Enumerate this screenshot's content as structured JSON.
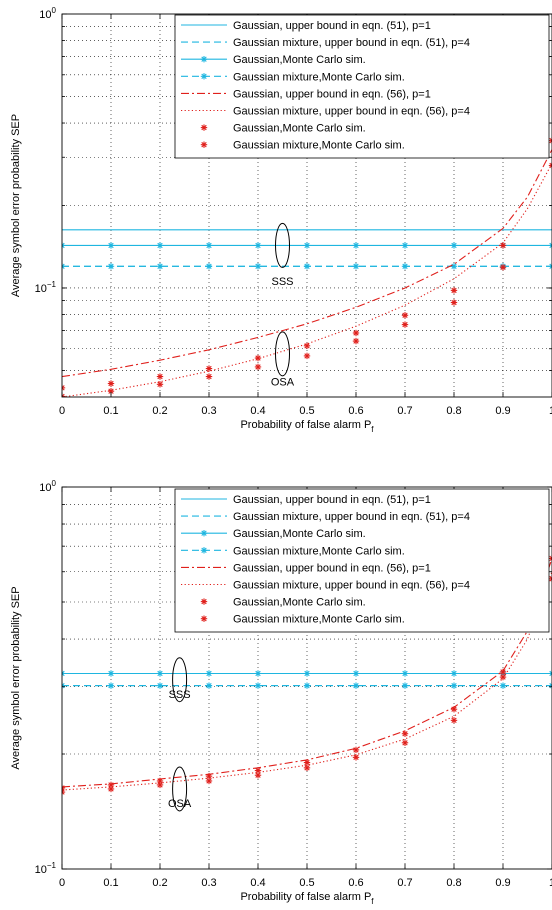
{
  "colors": {
    "cyan": "#1fb6e0",
    "red": "#e0201c",
    "axis": "#000000",
    "grid": "#000000"
  },
  "chart_data": [
    {
      "type": "line",
      "xscale": "linear",
      "yscale": "log",
      "xlim": [
        0,
        1
      ],
      "ylim": [
        0.04,
        1
      ],
      "xticks": [
        "0",
        "0.1",
        "0.2",
        "0.3",
        "0.4",
        "0.5",
        "0.6",
        "0.7",
        "0.8",
        "0.9",
        "1"
      ],
      "ytick_major": [
        {
          "base": "10",
          "exp": "−1",
          "value": 0.1
        },
        {
          "base": "10",
          "exp": "0",
          "value": 1
        }
      ],
      "grid": true,
      "legend_position": "top-right",
      "xlabel": {
        "text": "Probability of false alarm P",
        "sub": "f"
      },
      "ylabel": "Average symbol error probability SEP",
      "annotations": [
        {
          "text": "SSS",
          "x": 0.45,
          "y": 0.106,
          "ellipse_y": 0.143
        },
        {
          "text": "OSA",
          "x": 0.45,
          "y": 0.0455,
          "ellipse_y": 0.0575
        }
      ],
      "series": [
        {
          "name": "Gaussian, upper bound in eqn. (51), p=1",
          "color": "cyan",
          "dash": "solid",
          "marker": "none",
          "x": [
            0,
            1
          ],
          "y": [
            0.163,
            0.163
          ]
        },
        {
          "name": "Gaussian mixture, upper bound in eqn. (51), p=4",
          "color": "cyan",
          "dash": "dashed",
          "marker": "none",
          "x": [
            0,
            1
          ],
          "y": [
            0.12,
            0.12
          ]
        },
        {
          "name": "Gaussian,Monte Carlo sim.",
          "color": "cyan",
          "dash": "solid",
          "marker": "star",
          "x": [
            0,
            0.1,
            0.2,
            0.3,
            0.4,
            0.5,
            0.6,
            0.7,
            0.8,
            0.9,
            1
          ],
          "y": [
            0.143,
            0.143,
            0.143,
            0.143,
            0.143,
            0.143,
            0.143,
            0.143,
            0.143,
            0.143,
            0.143
          ]
        },
        {
          "name": "Gaussian mixture,Monte Carlo sim.",
          "color": "cyan",
          "dash": "dashed",
          "marker": "star",
          "x": [
            0,
            0.1,
            0.2,
            0.3,
            0.4,
            0.5,
            0.6,
            0.7,
            0.8,
            0.9,
            1
          ],
          "y": [
            0.12,
            0.12,
            0.12,
            0.12,
            0.12,
            0.12,
            0.12,
            0.12,
            0.12,
            0.12,
            0.12
          ]
        },
        {
          "name": "Gaussian, upper bound in eqn. (56), p=1",
          "color": "red",
          "dash": "dashdot",
          "marker": "none",
          "x": [
            0,
            0.1,
            0.2,
            0.3,
            0.4,
            0.5,
            0.6,
            0.7,
            0.8,
            0.9,
            0.95,
            1
          ],
          "y": [
            0.0475,
            0.0505,
            0.0545,
            0.0595,
            0.066,
            0.074,
            0.085,
            0.1,
            0.122,
            0.165,
            0.215,
            0.32
          ]
        },
        {
          "name": "Gaussian mixture, upper bound in eqn. (56), p=4",
          "color": "red",
          "dash": "dotted",
          "marker": "none",
          "x": [
            0,
            0.1,
            0.2,
            0.3,
            0.4,
            0.5,
            0.6,
            0.7,
            0.8,
            0.9,
            0.95,
            1
          ],
          "y": [
            0.04,
            0.0423,
            0.0455,
            0.0497,
            0.0552,
            0.0625,
            0.0725,
            0.0865,
            0.108,
            0.146,
            0.195,
            0.285
          ]
        },
        {
          "name": "Gaussian,Monte Carlo sim.",
          "color": "red",
          "dash": "none",
          "marker": "star",
          "x": [
            0,
            0.1,
            0.2,
            0.3,
            0.4,
            0.5,
            0.6,
            0.7,
            0.8,
            0.9,
            1
          ],
          "y": [
            0.0432,
            0.0448,
            0.0475,
            0.0508,
            0.0555,
            0.0615,
            0.0685,
            0.0795,
            0.098,
            0.143,
            0.345
          ]
        },
        {
          "name": "Gaussian mixture,Monte Carlo sim.",
          "color": "red",
          "dash": "none",
          "marker": "star",
          "x": [
            0,
            0.1,
            0.2,
            0.3,
            0.4,
            0.5,
            0.6,
            0.7,
            0.8,
            0.9,
            1
          ],
          "y": [
            0.0402,
            0.042,
            0.0445,
            0.0475,
            0.0515,
            0.0565,
            0.064,
            0.0735,
            0.0885,
            0.119,
            0.28
          ]
        }
      ]
    },
    {
      "type": "line",
      "xscale": "linear",
      "yscale": "log",
      "xlim": [
        0,
        1
      ],
      "ylim": [
        0.1,
        1
      ],
      "xticks": [
        "0",
        "0.1",
        "0.2",
        "0.3",
        "0.4",
        "0.5",
        "0.6",
        "0.7",
        "0.8",
        "0.9",
        "1"
      ],
      "ytick_major": [
        {
          "base": "10",
          "exp": "−1",
          "value": 0.1
        },
        {
          "base": "10",
          "exp": "0",
          "value": 1
        }
      ],
      "grid": true,
      "legend_position": "top-right",
      "xlabel": {
        "text": "Probability of false alarm P",
        "sub": "f"
      },
      "ylabel": "Average symbol error probability SEP",
      "annotations": [
        {
          "text": "SSS",
          "x": 0.24,
          "y": 0.287,
          "ellipse_y": 0.313
        },
        {
          "text": "OSA",
          "x": 0.24,
          "y": 0.149,
          "ellipse_y": 0.162
        }
      ],
      "series": [
        {
          "name": "Gaussian, upper bound in eqn. (51), p=1",
          "color": "cyan",
          "dash": "solid",
          "marker": "none",
          "x": [
            0,
            1
          ],
          "y": [
            0.325,
            0.325
          ]
        },
        {
          "name": "Gaussian mixture, upper bound in eqn. (51), p=4",
          "color": "cyan",
          "dash": "dashed",
          "marker": "none",
          "x": [
            0,
            1
          ],
          "y": [
            0.302,
            0.302
          ]
        },
        {
          "name": "Gaussian,Monte Carlo sim.",
          "color": "cyan",
          "dash": "solid",
          "marker": "star",
          "x": [
            0,
            0.1,
            0.2,
            0.3,
            0.4,
            0.5,
            0.6,
            0.7,
            0.8,
            0.9,
            1
          ],
          "y": [
            0.325,
            0.325,
            0.325,
            0.325,
            0.325,
            0.325,
            0.325,
            0.325,
            0.325,
            0.325,
            0.325
          ]
        },
        {
          "name": "Gaussian mixture,Monte Carlo sim.",
          "color": "cyan",
          "dash": "dashed",
          "marker": "star",
          "x": [
            0,
            0.1,
            0.2,
            0.3,
            0.4,
            0.5,
            0.6,
            0.7,
            0.8,
            0.9,
            1
          ],
          "y": [
            0.302,
            0.302,
            0.302,
            0.302,
            0.302,
            0.302,
            0.302,
            0.302,
            0.302,
            0.302,
            0.302
          ]
        },
        {
          "name": "Gaussian, upper bound in eqn. (56), p=1",
          "color": "red",
          "dash": "dashdot",
          "marker": "none",
          "x": [
            0,
            0.1,
            0.2,
            0.3,
            0.4,
            0.5,
            0.6,
            0.7,
            0.8,
            0.9,
            0.95,
            1
          ],
          "y": [
            0.164,
            0.167,
            0.172,
            0.177,
            0.184,
            0.193,
            0.207,
            0.23,
            0.265,
            0.33,
            0.42,
            0.65
          ]
        },
        {
          "name": "Gaussian mixture, upper bound in eqn. (56), p=4",
          "color": "red",
          "dash": "dotted",
          "marker": "none",
          "x": [
            0,
            0.1,
            0.2,
            0.3,
            0.4,
            0.5,
            0.6,
            0.7,
            0.8,
            0.9,
            0.95,
            1
          ],
          "y": [
            0.161,
            0.164,
            0.168,
            0.173,
            0.179,
            0.187,
            0.199,
            0.219,
            0.251,
            0.315,
            0.4,
            0.6
          ]
        },
        {
          "name": "Gaussian,Monte Carlo sim.",
          "color": "red",
          "dash": "none",
          "marker": "star",
          "x": [
            0,
            0.1,
            0.2,
            0.3,
            0.4,
            0.5,
            0.6,
            0.7,
            0.8,
            0.9,
            1
          ],
          "y": [
            0.163,
            0.166,
            0.17,
            0.175,
            0.181,
            0.19,
            0.205,
            0.226,
            0.262,
            0.328,
            0.65
          ]
        },
        {
          "name": "Gaussian mixture,Monte Carlo sim.",
          "color": "red",
          "dash": "none",
          "marker": "star",
          "x": [
            0,
            0.1,
            0.2,
            0.3,
            0.4,
            0.5,
            0.6,
            0.7,
            0.8,
            0.9,
            1
          ],
          "y": [
            0.159,
            0.162,
            0.166,
            0.17,
            0.176,
            0.184,
            0.196,
            0.214,
            0.245,
            0.318,
            0.575
          ]
        }
      ]
    }
  ]
}
